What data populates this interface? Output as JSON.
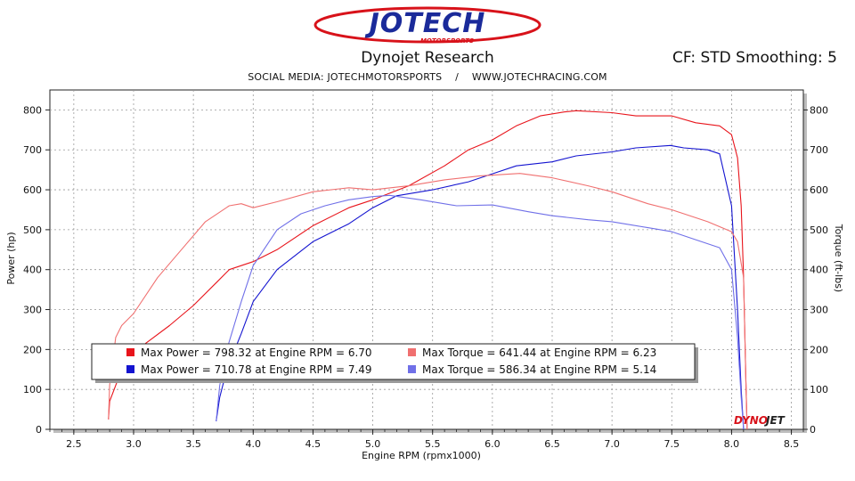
{
  "header": {
    "logo_text": "JOTECH",
    "logo_subtext": "MOTORSPORTS",
    "title": "Dynojet Research",
    "cf_text": "CF: STD Smoothing: 5",
    "social": "SOCIAL MEDIA: JOTECHMOTORSPORTS    /    WWW.JOTECHRACING.COM"
  },
  "watermark": {
    "part1": "DYNO",
    "part2": "JET"
  },
  "colors": {
    "run1_power": "#e8141b",
    "run2_power": "#1414d0",
    "run1_torque": "#f07070",
    "run2_torque": "#7070e8"
  },
  "chart_data": {
    "type": "line",
    "xlabel": "Engine RPM (rpmx1000)",
    "ylabel": "Power (hp)",
    "y2label": "Torque (ft-lbs)",
    "xlim": [
      2.3,
      8.6
    ],
    "ylim": [
      0,
      850
    ],
    "x_ticks": [
      "2.5",
      "3.0",
      "3.5",
      "4.0",
      "4.5",
      "5.0",
      "5.5",
      "6.0",
      "6.5",
      "7.0",
      "7.5",
      "8.0",
      "8.5"
    ],
    "y_ticks": [
      "0",
      "100",
      "200",
      "300",
      "400",
      "500",
      "600",
      "700",
      "800"
    ],
    "grid": true,
    "series": [
      {
        "legend": "Max Power = 798.32 at Engine RPM = 6.70",
        "color": "#e8141b",
        "points": [
          [
            2.79,
            25
          ],
          [
            2.8,
            70
          ],
          [
            2.85,
            110
          ],
          [
            2.9,
            150
          ],
          [
            3.0,
            185
          ],
          [
            3.1,
            215
          ],
          [
            3.3,
            260
          ],
          [
            3.5,
            310
          ],
          [
            3.7,
            370
          ],
          [
            3.8,
            400
          ],
          [
            4.0,
            420
          ],
          [
            4.2,
            450
          ],
          [
            4.5,
            510
          ],
          [
            4.8,
            555
          ],
          [
            5.0,
            575
          ],
          [
            5.3,
            610
          ],
          [
            5.6,
            660
          ],
          [
            5.8,
            700
          ],
          [
            6.0,
            725
          ],
          [
            6.2,
            760
          ],
          [
            6.4,
            785
          ],
          [
            6.6,
            795
          ],
          [
            6.7,
            798
          ],
          [
            7.0,
            793
          ],
          [
            7.2,
            785
          ],
          [
            7.5,
            785
          ],
          [
            7.7,
            768
          ],
          [
            7.9,
            760
          ],
          [
            8.0,
            738
          ],
          [
            8.05,
            680
          ],
          [
            8.08,
            560
          ],
          [
            8.1,
            380
          ],
          [
            8.12,
            120
          ],
          [
            8.13,
            0
          ]
        ]
      },
      {
        "legend": "Max Power = 710.78 at Engine RPM = 7.49",
        "color": "#1414d0",
        "points": [
          [
            3.69,
            20
          ],
          [
            3.72,
            80
          ],
          [
            3.78,
            150
          ],
          [
            3.9,
            240
          ],
          [
            4.0,
            320
          ],
          [
            4.2,
            400
          ],
          [
            4.5,
            470
          ],
          [
            4.8,
            515
          ],
          [
            5.0,
            555
          ],
          [
            5.2,
            585
          ],
          [
            5.5,
            600
          ],
          [
            5.8,
            620
          ],
          [
            6.0,
            640
          ],
          [
            6.2,
            660
          ],
          [
            6.5,
            670
          ],
          [
            6.7,
            685
          ],
          [
            7.0,
            695
          ],
          [
            7.2,
            705
          ],
          [
            7.49,
            711
          ],
          [
            7.6,
            705
          ],
          [
            7.8,
            700
          ],
          [
            7.9,
            690
          ],
          [
            8.0,
            560
          ],
          [
            8.05,
            300
          ],
          [
            8.08,
            100
          ],
          [
            8.1,
            0
          ]
        ]
      },
      {
        "legend": "Max Torque = 641.44 at Engine RPM = 6.23",
        "color": "#f07070",
        "points": [
          [
            2.79,
            25
          ],
          [
            2.8,
            110
          ],
          [
            2.85,
            230
          ],
          [
            2.9,
            260
          ],
          [
            3.0,
            290
          ],
          [
            3.2,
            380
          ],
          [
            3.4,
            450
          ],
          [
            3.6,
            520
          ],
          [
            3.8,
            560
          ],
          [
            3.9,
            565
          ],
          [
            4.0,
            555
          ],
          [
            4.2,
            570
          ],
          [
            4.5,
            595
          ],
          [
            4.8,
            605
          ],
          [
            5.0,
            600
          ],
          [
            5.3,
            610
          ],
          [
            5.6,
            625
          ],
          [
            5.9,
            635
          ],
          [
            6.23,
            641
          ],
          [
            6.5,
            630
          ],
          [
            6.8,
            610
          ],
          [
            7.0,
            595
          ],
          [
            7.3,
            565
          ],
          [
            7.5,
            550
          ],
          [
            7.8,
            520
          ],
          [
            8.0,
            495
          ],
          [
            8.05,
            470
          ],
          [
            8.1,
            380
          ],
          [
            8.12,
            120
          ],
          [
            8.13,
            0
          ]
        ]
      },
      {
        "legend": "Max Torque = 586.34 at Engine RPM = 5.14",
        "color": "#7070e8",
        "points": [
          [
            3.69,
            20
          ],
          [
            3.72,
            110
          ],
          [
            3.78,
            200
          ],
          [
            3.9,
            320
          ],
          [
            4.0,
            410
          ],
          [
            4.2,
            500
          ],
          [
            4.4,
            540
          ],
          [
            4.6,
            560
          ],
          [
            4.8,
            575
          ],
          [
            5.0,
            583
          ],
          [
            5.14,
            586
          ],
          [
            5.4,
            575
          ],
          [
            5.7,
            560
          ],
          [
            6.0,
            562
          ],
          [
            6.3,
            545
          ],
          [
            6.5,
            535
          ],
          [
            6.8,
            525
          ],
          [
            7.0,
            520
          ],
          [
            7.3,
            505
          ],
          [
            7.5,
            495
          ],
          [
            7.7,
            475
          ],
          [
            7.9,
            455
          ],
          [
            8.0,
            400
          ],
          [
            8.05,
            230
          ],
          [
            8.08,
            80
          ],
          [
            8.1,
            0
          ]
        ]
      }
    ]
  }
}
